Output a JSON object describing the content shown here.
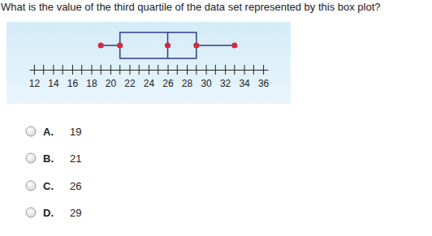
{
  "question": "What is the value of the third quartile of the data set represented by this box plot?",
  "chart_data": {
    "type": "box",
    "min": 19,
    "q1": 21,
    "median": 26,
    "q3": 29,
    "max": 33,
    "color": "#2f3a8a",
    "xlim": [
      11.5,
      36.5
    ],
    "xticks": [
      12,
      14,
      16,
      18,
      20,
      22,
      24,
      26,
      28,
      30,
      32,
      34,
      36
    ],
    "minor_xticks": [
      13,
      15,
      17,
      19,
      21,
      23,
      25,
      27,
      29,
      31,
      33,
      35
    ]
  },
  "options": [
    {
      "letter": "A.",
      "value": 19
    },
    {
      "letter": "B.",
      "value": 21
    },
    {
      "letter": "C.",
      "value": 26
    },
    {
      "letter": "D.",
      "value": 29
    }
  ]
}
